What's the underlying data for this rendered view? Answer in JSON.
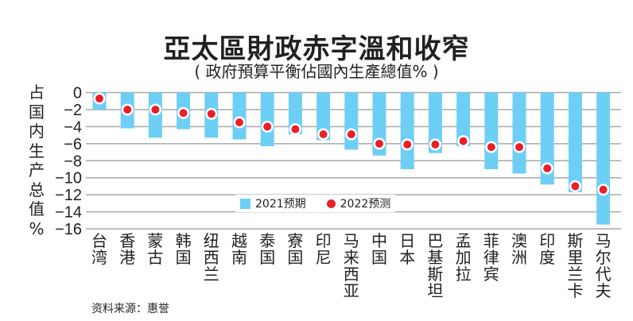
{
  "header": {
    "title": "亞太區財政赤字溫和收窄",
    "subtitle": "( 政府預算平衡佔國內生產總值% )"
  },
  "source": "资料来源：惠誉",
  "colors": {
    "bar": "#6dcff6",
    "dot": "#e8202a",
    "dot_ring": "#ffffff",
    "grid": "#a7a9ac",
    "text": "#231f20"
  },
  "chart_data": {
    "type": "bar",
    "title": "亞太區財政赤字溫和收窄",
    "subtitle": "( 政府預算平衡佔國內生產總值% )",
    "xlabel": "",
    "ylabel": "占国内生产总值%",
    "ylim": [
      -16,
      0
    ],
    "yticks": [
      0,
      -2,
      -4,
      -6,
      -8,
      -10,
      -12,
      -14,
      -16
    ],
    "ytick_labels": [
      "0",
      "−2",
      "−4",
      "−6",
      "−8",
      "−10",
      "−12",
      "−14",
      "−16"
    ],
    "grid": true,
    "legend_position": "bottom-center",
    "categories": [
      "台湾",
      "香港",
      "蒙古",
      "韩国",
      "纽西兰",
      "越南",
      "泰国",
      "寮国",
      "印尼",
      "马来西亚",
      "中国",
      "日本",
      "巴基斯坦",
      "孟加拉",
      "菲律宾",
      "澳洲",
      "印度",
      "斯里兰卡",
      "马尔代夫"
    ],
    "series": [
      {
        "name": "2021预期",
        "type": "bar",
        "values": [
          -2.0,
          -4.2,
          -5.3,
          -4.3,
          -5.3,
          -5.5,
          -6.3,
          -4.9,
          -5.6,
          -6.7,
          -7.4,
          -9.0,
          -7.1,
          -6.3,
          -9.0,
          -9.5,
          -10.8,
          -11.7,
          -15.5
        ]
      },
      {
        "name": "2022预测",
        "type": "dot",
        "values": [
          -0.7,
          -2.0,
          -2.0,
          -2.4,
          -2.5,
          -3.5,
          -4.0,
          -4.3,
          -4.9,
          -4.9,
          -6.0,
          -6.1,
          -6.1,
          -5.7,
          -6.4,
          -6.4,
          -8.9,
          -11.0,
          -11.4
        ]
      }
    ]
  }
}
